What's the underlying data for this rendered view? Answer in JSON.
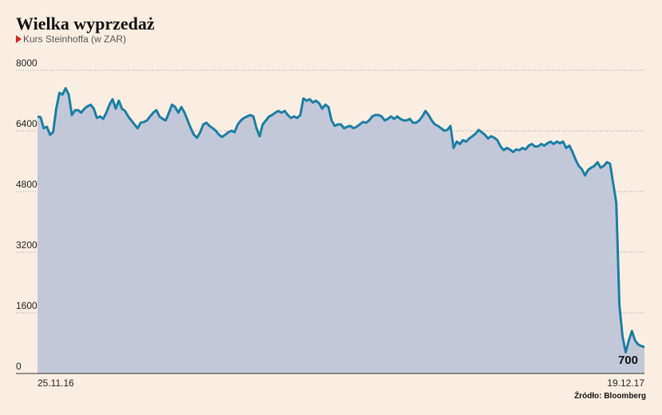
{
  "chart_data": {
    "type": "area",
    "title": "Wielka wyprzedaż",
    "subtitle": "Kurs Steinhoffa (w ZAR)",
    "source": "Źródło: Bloomberg",
    "categories": [
      "25.11.16",
      null,
      null,
      null,
      null,
      null,
      null,
      null,
      null,
      null,
      null,
      null,
      null,
      null,
      null,
      null,
      null,
      null,
      null,
      null,
      null,
      null,
      null,
      null,
      null,
      null,
      null,
      null,
      null,
      null,
      null,
      null,
      null,
      null,
      null,
      null,
      null,
      null,
      null,
      null,
      null,
      null,
      null,
      null,
      null,
      null,
      null,
      null,
      null,
      null,
      null,
      null,
      null,
      null,
      null,
      null,
      null,
      null,
      null,
      null,
      null,
      null,
      null,
      null,
      null,
      null,
      null,
      null,
      null,
      null,
      null,
      null,
      null,
      null,
      null,
      null,
      null,
      null,
      null,
      null,
      null,
      null,
      null,
      null,
      null,
      null,
      null,
      null,
      null,
      null,
      null,
      null,
      null,
      null,
      null,
      null,
      null,
      null,
      null,
      null,
      null,
      null,
      null,
      null,
      null,
      null,
      null,
      null,
      null,
      null,
      null,
      null,
      null,
      null,
      null,
      null,
      null,
      null,
      null,
      null,
      null,
      null,
      null,
      null,
      null,
      null,
      null,
      null,
      null,
      null,
      null,
      null,
      null,
      null,
      null,
      null,
      null,
      null,
      null,
      null,
      null,
      null,
      null,
      null,
      null,
      null,
      null,
      null,
      null,
      null,
      null,
      null,
      null,
      null,
      null,
      null,
      null,
      null,
      null,
      null,
      null,
      null,
      null,
      null,
      null,
      null,
      null,
      null,
      null,
      null,
      null,
      null,
      null,
      null,
      null,
      null,
      null,
      null,
      null,
      null,
      null,
      null,
      null,
      null,
      null,
      null,
      null,
      null,
      null,
      null,
      null,
      null,
      null,
      null,
      "19.12.17"
    ],
    "values": [
      6780,
      6760,
      6470,
      6510,
      6300,
      6365,
      6985,
      7400,
      7360,
      7525,
      7360,
      6820,
      6945,
      6945,
      6880,
      6985,
      7050,
      7090,
      6985,
      6740,
      6780,
      6715,
      6880,
      7090,
      7235,
      6985,
      7195,
      6985,
      6925,
      6780,
      6675,
      6570,
      6470,
      6615,
      6635,
      6675,
      6780,
      6880,
      6945,
      6780,
      6715,
      6675,
      6880,
      7090,
      7030,
      6880,
      7030,
      6880,
      6675,
      6470,
      6300,
      6220,
      6365,
      6570,
      6615,
      6530,
      6470,
      6405,
      6300,
      6240,
      6300,
      6365,
      6405,
      6365,
      6570,
      6675,
      6740,
      6780,
      6820,
      6780,
      6470,
      6260,
      6570,
      6675,
      6780,
      6820,
      6880,
      6925,
      6880,
      6925,
      6820,
      6740,
      6780,
      6740,
      6820,
      7255,
      7195,
      7235,
      7150,
      7195,
      7130,
      6985,
      7090,
      7030,
      6675,
      6530,
      6570,
      6570,
      6470,
      6510,
      6530,
      6470,
      6510,
      6570,
      6635,
      6615,
      6675,
      6780,
      6820,
      6820,
      6780,
      6675,
      6715,
      6780,
      6715,
      6780,
      6715,
      6675,
      6675,
      6715,
      6615,
      6615,
      6675,
      6780,
      6925,
      6820,
      6675,
      6570,
      6530,
      6470,
      6405,
      6425,
      6530,
      5950,
      6115,
      6055,
      6155,
      6115,
      6200,
      6260,
      6325,
      6425,
      6365,
      6300,
      6200,
      6260,
      6220,
      6155,
      5990,
      5890,
      5950,
      5910,
      5845,
      5910,
      5890,
      5950,
      5910,
      6010,
      6055,
      5990,
      5990,
      6055,
      6010,
      6075,
      6115,
      6055,
      6115,
      6075,
      6115,
      5950,
      6010,
      5845,
      5640,
      5475,
      5390,
      5225,
      5370,
      5430,
      5475,
      5575,
      5430,
      5475,
      5575,
      5535,
      5015,
      4500,
      1805,
      975,
      560,
      870,
      1120,
      870,
      765,
      725,
      700
    ],
    "color": "#1a7fa3",
    "fill": "#c3c8d8",
    "ylim": [
      0,
      8000
    ],
    "yticks": [
      0,
      1600,
      3200,
      4800,
      6400,
      8000
    ],
    "grid": true
  }
}
